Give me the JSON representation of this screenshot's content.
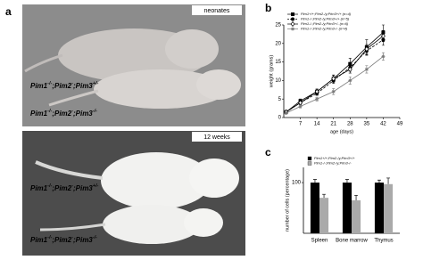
{
  "panel_labels": [
    "a",
    "b",
    "c"
  ],
  "photos": [
    {
      "tag": "neonates",
      "labels": [
        {
          "base": [
            "Pim1",
            ";Pim2",
            ";Pim3"
          ],
          "sup": [
            "-/-",
            "-",
            "+/-"
          ]
        },
        {
          "base": [
            "Pim1",
            ";Pim2",
            ";Pim3"
          ],
          "sup": [
            "-/-",
            "-",
            "-/-"
          ]
        }
      ]
    },
    {
      "tag": "12 weeks",
      "labels": [
        {
          "base": [
            "Pim1",
            ";Pim2",
            ";Pim3"
          ],
          "sup": [
            "-/-",
            "-",
            "+/-"
          ]
        },
        {
          "base": [
            "Pim1",
            ";Pim2",
            ";Pim3"
          ],
          "sup": [
            "-/-",
            "-",
            "-/-"
          ]
        }
      ]
    }
  ],
  "chart_data": [
    {
      "type": "line",
      "xlabel": "age (days)",
      "ylabel": "weight (grams)",
      "x": [
        1,
        7,
        14,
        21,
        28,
        35,
        42
      ],
      "xlim": [
        0,
        49
      ],
      "xticks": [
        7,
        14,
        21,
        28,
        35,
        42,
        49
      ],
      "ylim": [
        0,
        25
      ],
      "yticks": [
        0,
        5,
        10,
        15,
        20,
        25
      ],
      "series": [
        {
          "name": "Pim1+/+;Pim2-/y;Pim3+/+ (n=4)",
          "color": "#000000",
          "marker": "square",
          "dash": false,
          "values": [
            1.5,
            4.5,
            7,
            10.5,
            14.5,
            19,
            23
          ],
          "errors": [
            0.3,
            0.5,
            0.7,
            1,
            1.5,
            2,
            2
          ]
        },
        {
          "name": "Pim1-/-;Pim2-/y;Pim3+/+ (n=5)",
          "color": "#000000",
          "marker": "circle",
          "dash": true,
          "values": [
            1.5,
            4,
            6.5,
            10,
            13.5,
            18,
            21
          ],
          "errors": [
            0.3,
            0.4,
            0.5,
            0.8,
            1,
            1.2,
            1.5
          ]
        },
        {
          "name": "Pim1-/-;Pim2-/y;Pim3+/- (n=6)",
          "color": "#000000",
          "marker": "diamond",
          "dash": false,
          "values": [
            1.5,
            4,
            7,
            10.5,
            13,
            18.5,
            22
          ],
          "errors": [
            0.3,
            0.4,
            0.5,
            0.8,
            1,
            1.2,
            1.5
          ]
        },
        {
          "name": "Pim1-/-;Pim2-/y;Pim3-/- (n=4)",
          "color": "#777777",
          "marker": "star",
          "dash": false,
          "values": [
            1.2,
            3,
            5,
            7,
            10,
            13,
            16.5
          ],
          "errors": [
            0.2,
            0.4,
            0.5,
            0.8,
            1,
            1,
            1
          ]
        }
      ]
    },
    {
      "type": "bar",
      "ylabel": "number of cells (percentage)",
      "categories": [
        "Spleen",
        "Bone marrow",
        "Thymus"
      ],
      "ylim": [
        0,
        130
      ],
      "yticks": [
        100
      ],
      "series": [
        {
          "name": "Pim1+/+;Pim2-/y;Pim3+/+",
          "color": "#000000",
          "values": [
            100,
            100,
            100
          ],
          "errors": [
            6,
            6,
            5
          ]
        },
        {
          "name": "Pim1-/-;Pim2-/y;Pim3-/-",
          "color": "#aaaaaa",
          "values": [
            70,
            65,
            97
          ],
          "errors": [
            7,
            10,
            12
          ]
        }
      ]
    }
  ]
}
